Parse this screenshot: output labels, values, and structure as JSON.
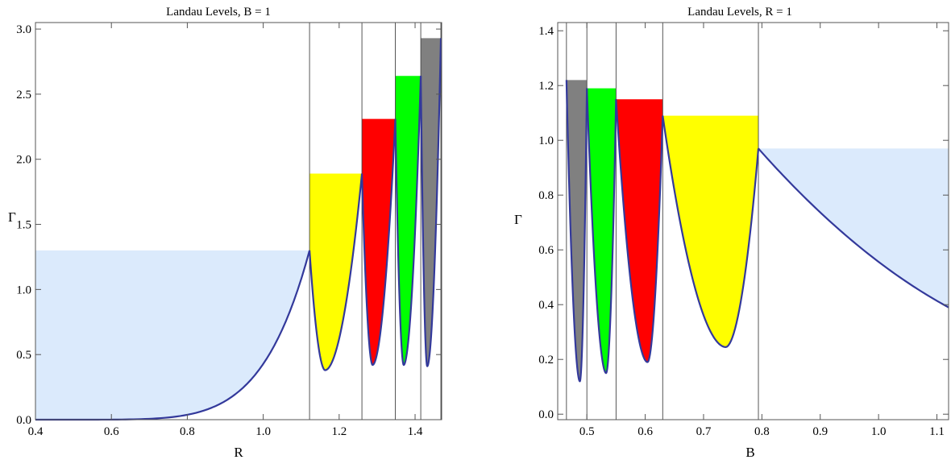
{
  "chart_data": [
    {
      "type": "area",
      "title": "Landau Levels, B = 1",
      "xlabel": "R",
      "ylabel": "Γ",
      "xlim": [
        0.4,
        1.47
      ],
      "ylim": [
        0.0,
        3.05
      ],
      "xticks": [
        "0.4",
        "0.6",
        "0.8",
        "1.0",
        "1.2",
        "1.4"
      ],
      "yticks": [
        "0.0",
        "0.5",
        "1.0",
        "1.5",
        "2.0",
        "2.5",
        "3.0"
      ],
      "boundaries": [
        1.122,
        1.26,
        1.348,
        1.415,
        1.468
      ],
      "curve_start": {
        "x": 0.4,
        "y": 0.0
      },
      "regions": [
        {
          "color": "#dbeafc",
          "x": [
            0.4,
            1.122
          ],
          "top": 1.3,
          "kind": "growth",
          "min": 0.0
        },
        {
          "color": "#ffff00",
          "x": [
            1.122,
            1.26
          ],
          "top": 1.89,
          "min_x": 1.163,
          "min": 0.38
        },
        {
          "color": "#ff0000",
          "x": [
            1.26,
            1.348
          ],
          "top": 2.31,
          "min_x": 1.288,
          "min": 0.42
        },
        {
          "color": "#00ff00",
          "x": [
            1.348,
            1.415
          ],
          "top": 2.64,
          "min_x": 1.37,
          "min": 0.42
        },
        {
          "color": "#808080",
          "x": [
            1.415,
            1.468
          ],
          "top": 2.93,
          "min_x": 1.432,
          "min": 0.41
        }
      ]
    },
    {
      "type": "area",
      "title": "Landau Levels, R = 1",
      "xlabel": "B",
      "ylabel": "Γ",
      "xlim": [
        0.45,
        1.12
      ],
      "ylim": [
        -0.02,
        1.43
      ],
      "xticks": [
        "0.5",
        "0.6",
        "0.7",
        "0.8",
        "0.9",
        "1.0",
        "1.1"
      ],
      "yticks": [
        "0.0",
        "0.2",
        "0.4",
        "0.6",
        "0.8",
        "1.0",
        "1.2",
        "1.4"
      ],
      "boundaries": [
        0.465,
        0.5,
        0.55,
        0.63,
        0.794
      ],
      "curve_end": {
        "x": 1.12,
        "y": 0.39
      },
      "regions": [
        {
          "color": "#808080",
          "x": [
            0.465,
            0.5
          ],
          "top": 1.22,
          "min_x": 0.488,
          "min": 0.12
        },
        {
          "color": "#00ff00",
          "x": [
            0.5,
            0.55
          ],
          "top": 1.19,
          "min_x": 0.533,
          "min": 0.15
        },
        {
          "color": "#ff0000",
          "x": [
            0.55,
            0.63
          ],
          "top": 1.15,
          "min_x": 0.604,
          "min": 0.19
        },
        {
          "color": "#ffff00",
          "x": [
            0.63,
            0.794
          ],
          "top": 1.09,
          "min_x": 0.738,
          "min": 0.245
        },
        {
          "color": "#dbeafc",
          "x": [
            0.794,
            1.12
          ],
          "top": 0.97,
          "kind": "decay",
          "min": 0.39
        }
      ]
    }
  ]
}
